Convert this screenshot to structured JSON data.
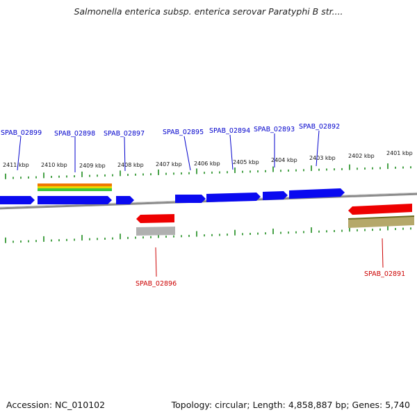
{
  "title": "Salmonella enterica subsp. enterica serovar Paratyphi B str....",
  "footer": {
    "accession": "Accession: NC_010102",
    "summary": "Topology: circular; Length: 4,858,887 bp; Genes: 5,740"
  },
  "colors": {
    "forward_gene": "#0a0af0",
    "reverse_gene": "#ee0000",
    "forward_label": "#0000cc",
    "reverse_label": "#cc0000",
    "tick": "#1a8a1a",
    "backbone": "#8a8a8a",
    "feature_orange": "#f07800",
    "feature_yellow": "#e8d800",
    "feature_green": "#3cc83c",
    "feature_gray": "#b0b0b0",
    "feature_khaki": "#b5a86a"
  },
  "kbp_ticks": [
    "2411 kbp",
    "2410 kbp",
    "2409 kbp",
    "2408 kbp",
    "2407 kbp",
    "2406 kbp",
    "2405 kbp",
    "2404 kbp",
    "2403 kbp",
    "2402 kbp",
    "2401 kbp"
  ],
  "forward_genes": [
    "SPAB_02899",
    "SPAB_02898",
    "SPAB_02897",
    "SPAB_02895",
    "SPAB_02894",
    "SPAB_02893",
    "SPAB_02892"
  ],
  "reverse_genes": [
    "SPAB_02896",
    "SPAB_02891"
  ]
}
